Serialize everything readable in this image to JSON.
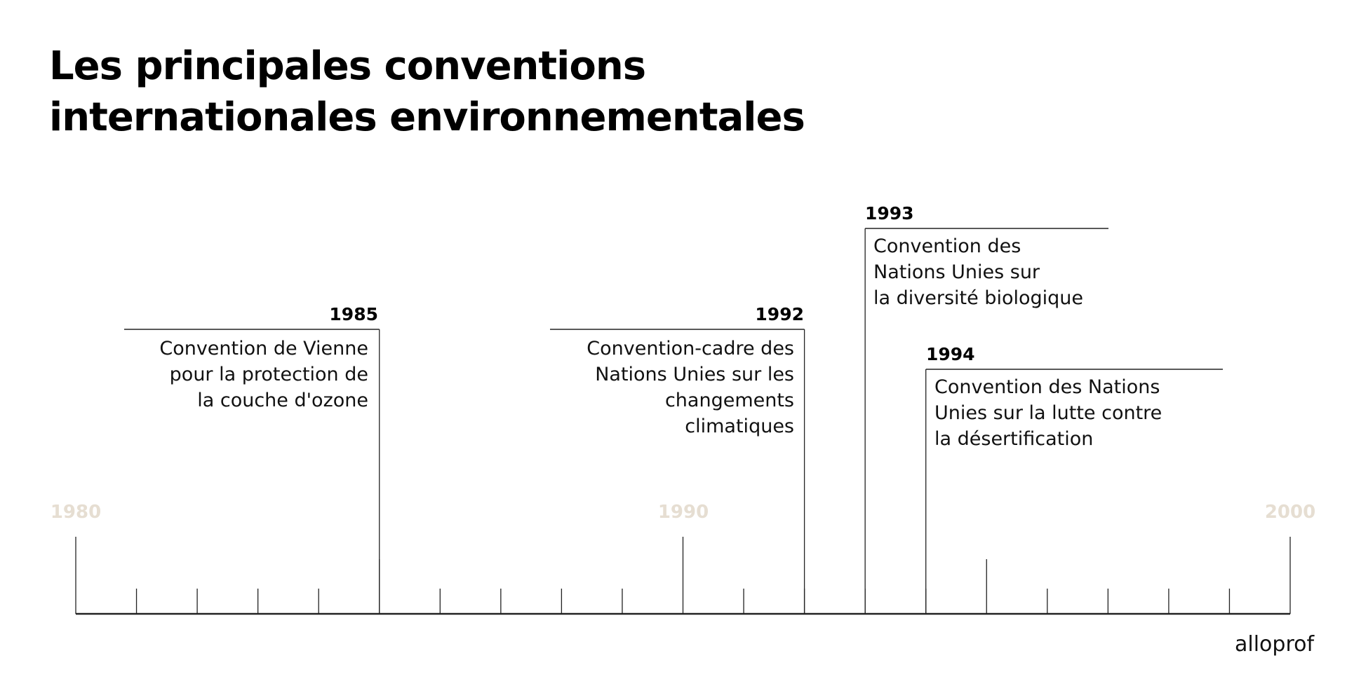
{
  "title": {
    "line1": "Les principales conventions",
    "line2": "internationales environnementales"
  },
  "axis": {
    "start_year": 1980,
    "end_year": 2000,
    "labels": [
      "1980",
      "1990",
      "2000"
    ],
    "label_color": "#e6ded2"
  },
  "events": [
    {
      "year": "1985",
      "side": "left",
      "lines": [
        "Convention de Vienne",
        "pour la protection de",
        "la couche d'ozone"
      ]
    },
    {
      "year": "1992",
      "side": "left",
      "lines": [
        "Convention-cadre des",
        "Nations Unies sur les",
        "changements",
        "climatiques"
      ]
    },
    {
      "year": "1993",
      "side": "right",
      "lines": [
        "Convention des",
        "Nations Unies sur",
        "la diversité biologique"
      ]
    },
    {
      "year": "1994",
      "side": "right",
      "lines": [
        "Convention des Nations",
        "Unies sur la lutte contre",
        "la désertification"
      ]
    }
  ],
  "logo": "alloprof"
}
